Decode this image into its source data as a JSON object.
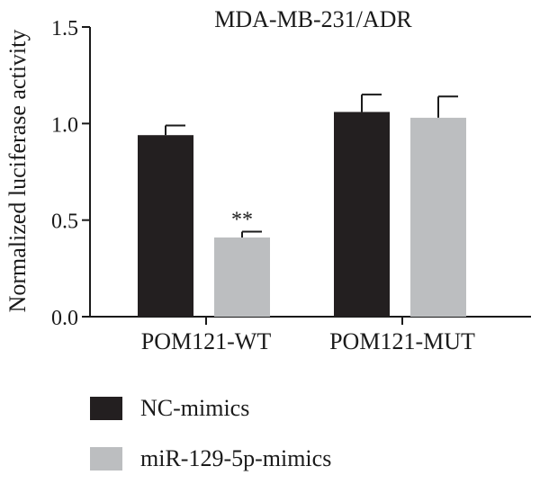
{
  "chart_data": {
    "type": "bar",
    "title": "MDA-MB-231/ADR",
    "ylabel": "Normalized luciferase activity",
    "xlabel": "",
    "ylim": [
      0,
      1.5
    ],
    "yticks": [
      "0.0",
      "0.5",
      "1.0",
      "1.5"
    ],
    "categories": [
      "POM121-WT",
      "POM121-MUT"
    ],
    "series": [
      {
        "name": "NC-mimics",
        "color": "#231f20",
        "values": [
          0.94,
          1.06
        ],
        "errors": [
          0.05,
          0.09
        ]
      },
      {
        "name": "miR-129-5p-mimics",
        "color": "#bcbec0",
        "values": [
          0.41,
          1.03
        ],
        "errors": [
          0.03,
          0.11
        ]
      }
    ],
    "annotations": [
      {
        "category": "POM121-WT",
        "series": "miR-129-5p-mimics",
        "text": "**"
      }
    ],
    "legend_position": "bottom-left"
  }
}
